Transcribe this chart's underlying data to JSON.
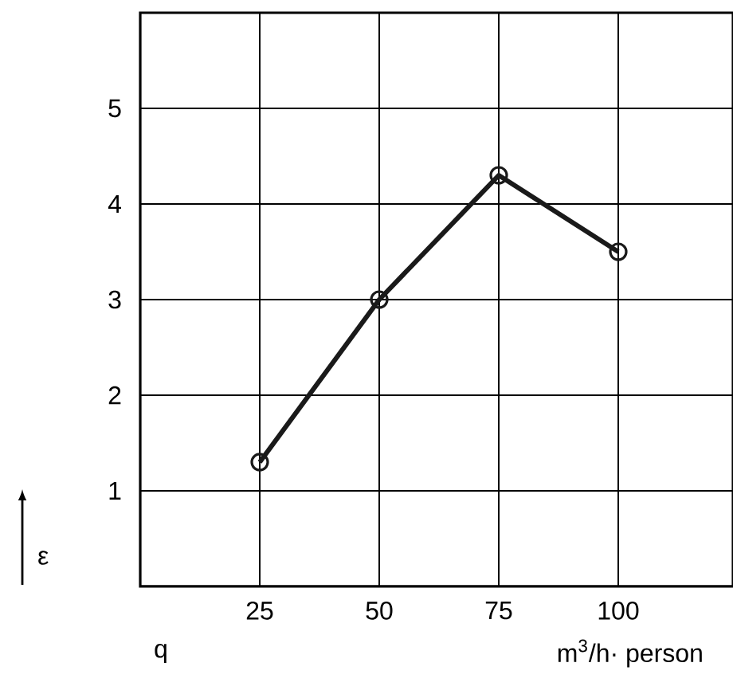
{
  "chart_data": {
    "type": "line",
    "xlabel": "q",
    "ylabel": "ε",
    "annotations": [
      "m$^{3}$/h· person"
    ],
    "x": [
      25,
      50,
      75,
      100
    ],
    "values": [
      1.3,
      3.0,
      4.3,
      3.5
    ],
    "color": "#1a1a1a",
    "xlim": [
      0,
      124
    ],
    "ylim": [
      0,
      6
    ],
    "xticks": [
      25,
      50,
      75,
      100
    ],
    "yticks": [
      1,
      2,
      3,
      4,
      5
    ],
    "grid": true,
    "marker": "circle",
    "line_style": "solid"
  }
}
